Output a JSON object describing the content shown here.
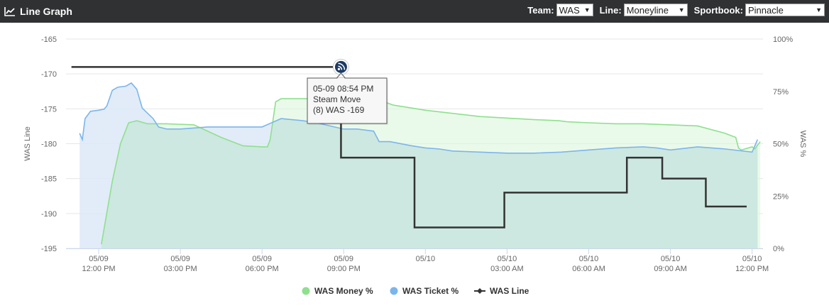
{
  "header": {
    "title": "Line Graph",
    "icon": "line-chart-icon",
    "team_label": "Team:",
    "team_value": "WAS",
    "line_label": "Line:",
    "line_value": "Moneyline",
    "book_label": "Sportbook:",
    "book_value": "Pinnacle"
  },
  "tooltip": {
    "time": "05-09 08:54 PM",
    "event": "Steam Move",
    "detail": "(8) WAS -169",
    "icon": "rss-icon"
  },
  "colors": {
    "money": "#8ee08e",
    "money_fill": "#def8de",
    "ticket": "#7cb5ec",
    "ticket_fill": "#dce9f7",
    "overlap_fill": "#cde8e0",
    "line": "#333333",
    "header_bg": "#2f3133"
  },
  "chart_data": {
    "type": "line",
    "xlabel": "",
    "ylabel_left": "WAS Line",
    "ylabel_right": "WAS %",
    "ylim_left": [
      -195,
      -165
    ],
    "ylim_right": [
      0,
      100
    ],
    "y_ticks_left": [
      "-165",
      "-170",
      "-175",
      "-180",
      "-185",
      "-190",
      "-195"
    ],
    "y_ticks_right": [
      "100%",
      "75%",
      "50%",
      "25%",
      "0%"
    ],
    "x_ticks": [
      {
        "date": "05/09",
        "time": "12:00 PM",
        "hours": 12
      },
      {
        "date": "05/09",
        "time": "03:00 PM",
        "hours": 15
      },
      {
        "date": "05/09",
        "time": "06:00 PM",
        "hours": 18
      },
      {
        "date": "05/09",
        "time": "09:00 PM",
        "hours": 21
      },
      {
        "date": "05/10",
        "time": "",
        "hours": 24
      },
      {
        "date": "05/10",
        "time": "03:00 AM",
        "hours": 27
      },
      {
        "date": "05/10",
        "time": "06:00 AM",
        "hours": 30
      },
      {
        "date": "05/10",
        "time": "09:00 AM",
        "hours": 33
      },
      {
        "date": "05/10",
        "time": "12:00 PM",
        "hours": 36
      }
    ],
    "xlim_hours": [
      10.8,
      36.4
    ],
    "legend_position": "bottom-center",
    "series": [
      {
        "name": "WAS Money %",
        "axis": "right",
        "points": [
          [
            12.1,
            2
          ],
          [
            12.5,
            32
          ],
          [
            12.8,
            50
          ],
          [
            13.1,
            60
          ],
          [
            13.4,
            61
          ],
          [
            13.8,
            59.5
          ],
          [
            14.5,
            59.5
          ],
          [
            15.5,
            59
          ],
          [
            16.5,
            53
          ],
          [
            17.3,
            49
          ],
          [
            18.0,
            48.5
          ],
          [
            18.2,
            48.5
          ],
          [
            18.3,
            52
          ],
          [
            18.5,
            70
          ],
          [
            18.7,
            71.5
          ],
          [
            20,
            71.5
          ],
          [
            21,
            71
          ],
          [
            22,
            70
          ],
          [
            22.5,
            70
          ],
          [
            22.8,
            68.5
          ],
          [
            24,
            66
          ],
          [
            26,
            63
          ],
          [
            28,
            61.5
          ],
          [
            28.9,
            61
          ],
          [
            29.2,
            60.5
          ],
          [
            30,
            60
          ],
          [
            31,
            59.5
          ],
          [
            32,
            59.5
          ],
          [
            33,
            59
          ],
          [
            34,
            58.5
          ],
          [
            35,
            55
          ],
          [
            35.4,
            53
          ],
          [
            35.5,
            48
          ],
          [
            35.6,
            47
          ],
          [
            36,
            48.5
          ],
          [
            36.1,
            47.5
          ],
          [
            36.3,
            51
          ]
        ]
      },
      {
        "name": "WAS Ticket %",
        "axis": "right",
        "points": [
          [
            11.3,
            55
          ],
          [
            11.4,
            52
          ],
          [
            11.5,
            62
          ],
          [
            11.7,
            65.5
          ],
          [
            12.0,
            66
          ],
          [
            12.2,
            66.5
          ],
          [
            12.3,
            68
          ],
          [
            12.5,
            75.5
          ],
          [
            12.7,
            77
          ],
          [
            13.0,
            77.5
          ],
          [
            13.2,
            79
          ],
          [
            13.4,
            76
          ],
          [
            13.6,
            67
          ],
          [
            14.0,
            62
          ],
          [
            14.2,
            58
          ],
          [
            14.5,
            57
          ],
          [
            15,
            57
          ],
          [
            16,
            58
          ],
          [
            17,
            58
          ],
          [
            18,
            58
          ],
          [
            18.7,
            62
          ],
          [
            19.5,
            61
          ],
          [
            20,
            60
          ],
          [
            21,
            57
          ],
          [
            21.5,
            57
          ],
          [
            22.1,
            56
          ],
          [
            22.3,
            51
          ],
          [
            22.7,
            51
          ],
          [
            23.5,
            49
          ],
          [
            24.0,
            48
          ],
          [
            24.5,
            47.5
          ],
          [
            25,
            46.5
          ],
          [
            26,
            46
          ],
          [
            27,
            45.5
          ],
          [
            28,
            45.5
          ],
          [
            29,
            46
          ],
          [
            30,
            47
          ],
          [
            31,
            48
          ],
          [
            32,
            48.5
          ],
          [
            32.5,
            48
          ],
          [
            33,
            47
          ],
          [
            34,
            48.5
          ],
          [
            35,
            47.5
          ],
          [
            36,
            46
          ],
          [
            36.2,
            52
          ]
        ]
      },
      {
        "name": "WAS Line",
        "axis": "left",
        "points": [
          [
            11.0,
            -169
          ],
          [
            20.9,
            -169
          ],
          [
            20.9,
            -182
          ],
          [
            23.6,
            -182
          ],
          [
            23.6,
            -192
          ],
          [
            26.9,
            -192
          ],
          [
            26.9,
            -187
          ],
          [
            31.4,
            -187
          ],
          [
            31.4,
            -182
          ],
          [
            32.7,
            -182
          ],
          [
            32.7,
            -185
          ],
          [
            34.3,
            -185
          ],
          [
            34.3,
            -189
          ],
          [
            35.8,
            -189
          ]
        ]
      }
    ]
  }
}
